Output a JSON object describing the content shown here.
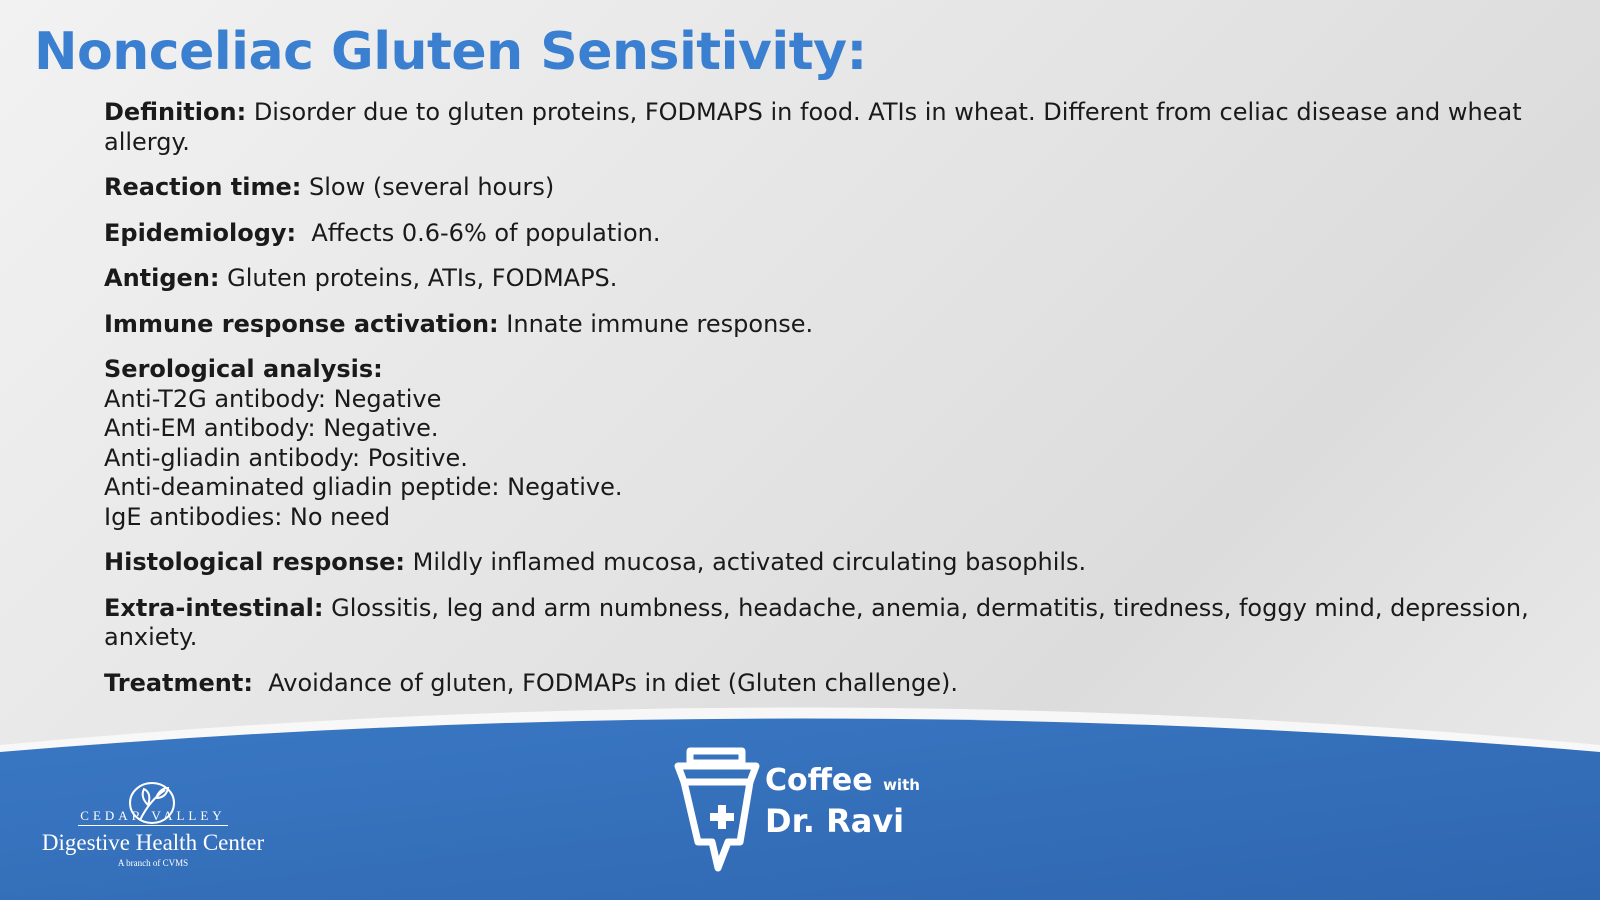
{
  "title": "Nonceliac Gluten Sensitivity:",
  "sections": [
    {
      "label": "Definition:",
      "text": "Disorder due to gluten proteins, FODMAPS in food. ATIs in wheat. Different from celiac disease and wheat allergy."
    },
    {
      "label": "Reaction time:",
      "text": "Slow (several hours)"
    },
    {
      "label": "Epidemiology:",
      "text": "Affects 0.6-6% of population."
    },
    {
      "label": "Antigen:",
      "text": "Gluten proteins, ATIs, FODMAPS."
    },
    {
      "label": "Immune response activation:",
      "text": "Innate immune response."
    },
    {
      "label": "Serological analysis:",
      "lines": [
        "Anti-T2G antibody: Negative",
        "Anti-EM antibody: Negative.",
        "Anti-gliadin antibody: Positive.",
        "Anti-deaminated gliadin peptide: Negative.",
        "IgE antibodies: No need"
      ]
    },
    {
      "label": "Histological response:",
      "text": "Mildly inflamed mucosa, activated circulating basophils."
    },
    {
      "label": "Extra-intestinal:",
      "text": "Glossitis, leg and arm numbness, headache, anemia, dermatitis, tiredness, foggy mind, depression, anxiety."
    },
    {
      "label": "Treatment:",
      "text": "Avoidance of gluten, FODMAPs in diet (Gluten challenge)."
    }
  ],
  "footer": {
    "left_logo": {
      "top": "CEDAR VALLEY",
      "name": "Digestive Health Center",
      "sub": "A branch of CVMS"
    },
    "right_logo": {
      "coffee": "Coffee",
      "with": "with",
      "name": "Dr. Ravi"
    }
  },
  "colors": {
    "title": "#3a7fd0",
    "footer": "#3a74c0"
  }
}
